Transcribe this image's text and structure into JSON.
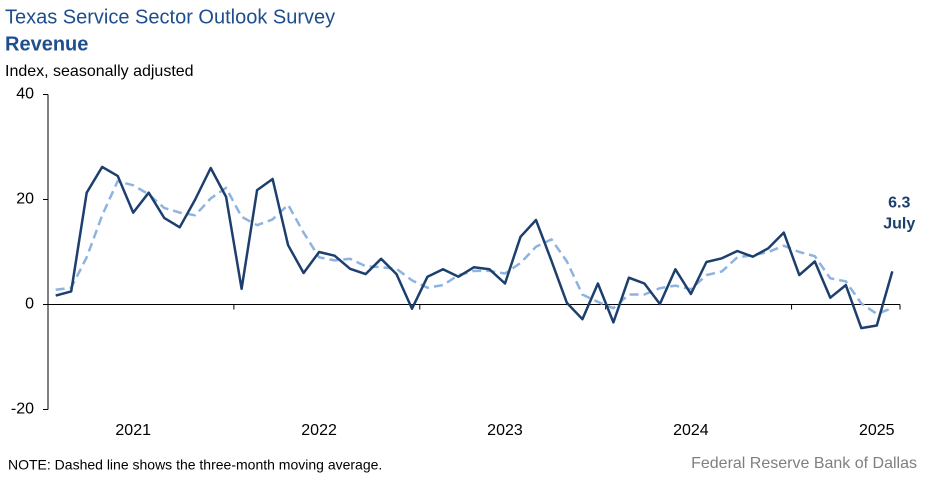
{
  "chart_data": {
    "type": "line",
    "title": "Texas Service Sector Outlook Survey",
    "subtitle": "Revenue",
    "y_label": "Index, seasonally adjusted",
    "note": "NOTE: Dashed line shows the three-month moving average.",
    "source": "Federal Reserve Bank of Dallas",
    "annotation": "July",
    "categories": [
      null,
      null,
      null,
      null,
      null,
      "2021",
      null,
      null,
      null,
      null,
      null,
      null,
      null,
      null,
      null,
      null,
      null,
      "2022",
      null,
      null,
      null,
      null,
      null,
      null,
      null,
      null,
      null,
      null,
      null,
      "2023",
      null,
      null,
      null,
      null,
      null,
      null,
      null,
      null,
      null,
      null,
      null,
      "2024",
      null,
      null,
      null,
      null,
      null,
      null,
      null,
      null,
      null,
      null,
      null,
      "2025",
      null
    ],
    "series": [
      {
        "name": "Revenue",
        "color": "#1d3f6e",
        "dashed": false,
        "values": [
          1.7,
          2.5,
          21.3,
          26.2,
          24.5,
          17.5,
          21.3,
          16.5,
          14.7,
          20.0,
          26.0,
          20.5,
          3.0,
          21.8,
          23.9,
          11.3,
          6.0,
          10.0,
          9.3,
          6.8,
          5.8,
          8.7,
          5.8,
          -0.8,
          5.3,
          6.7,
          5.3,
          7.1,
          6.7,
          4.0,
          12.9,
          16.1,
          8.3,
          0.3,
          -2.8,
          4.0,
          -3.4,
          5.1,
          4.0,
          0.1,
          6.7,
          2.0,
          8.1,
          8.8,
          10.2,
          9.1,
          10.7,
          13.7,
          5.6,
          8.2,
          1.3,
          3.7,
          -4.5,
          -4.0,
          6.3
        ]
      },
      {
        "name": "Three-month moving average",
        "color": "#8fb3e0",
        "dashed": true,
        "values": [
          2.8,
          3.2,
          9,
          17,
          23.5,
          22.7,
          21,
          18.4,
          17.5,
          17,
          20.2,
          22.2,
          16.7,
          15.1,
          16.2,
          19,
          13.7,
          9,
          8.4,
          8.7,
          7.3,
          7.1,
          6.8,
          4.6,
          3.2,
          3.7,
          5.6,
          6.4,
          6.4,
          5.9,
          7.9,
          11,
          12.4,
          8.2,
          1.9,
          0.5,
          -0.7,
          1.9,
          1.9,
          3.1,
          3.6,
          2.9,
          5.6,
          6.3,
          9,
          9.4,
          10,
          11.2,
          10,
          9.2,
          5,
          4.4,
          0.2,
          -1.8,
          -0.7
        ]
      }
    ],
    "ylim": [
      -20,
      40
    ],
    "yticks": [
      -20,
      0,
      20,
      40
    ],
    "grid": false
  }
}
